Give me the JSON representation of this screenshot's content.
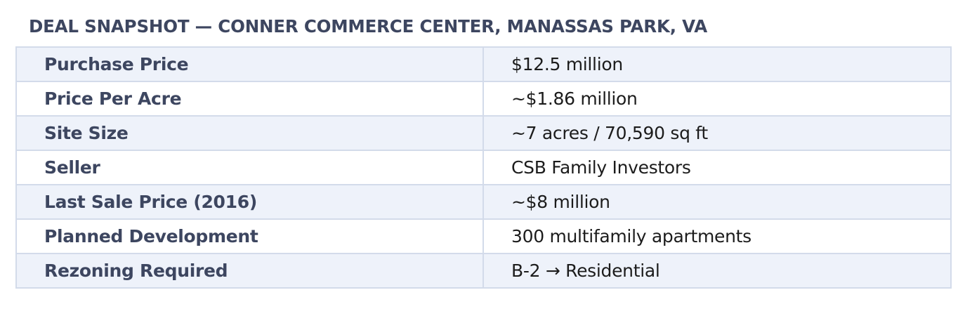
{
  "title": "DEAL SNAPSHOT — CONNER COMMERCE CENTER, MANASSAS PARK, VA",
  "rows": [
    {
      "label": "Purchase Price",
      "value": "$12.5 million"
    },
    {
      "label": "Price Per Acre",
      "value": "~$1.86 million"
    },
    {
      "label": "Site Size",
      "value": "~7 acres / 70,590 sq ft"
    },
    {
      "label": "Seller",
      "value": "CSB Family Investors"
    },
    {
      "label": "Last Sale Price (2016)",
      "value": "~$8 million"
    },
    {
      "label": "Planned Development",
      "value": "300 multifamily apartments"
    },
    {
      "label": "Rezoning Required",
      "value": "B-2 → Residential"
    }
  ],
  "colors": {
    "heading": "#3d4660",
    "row_shaded": "#eef2fa",
    "row_plain": "#ffffff",
    "border": "#d3dbea",
    "value_text": "#1c1c1c"
  }
}
